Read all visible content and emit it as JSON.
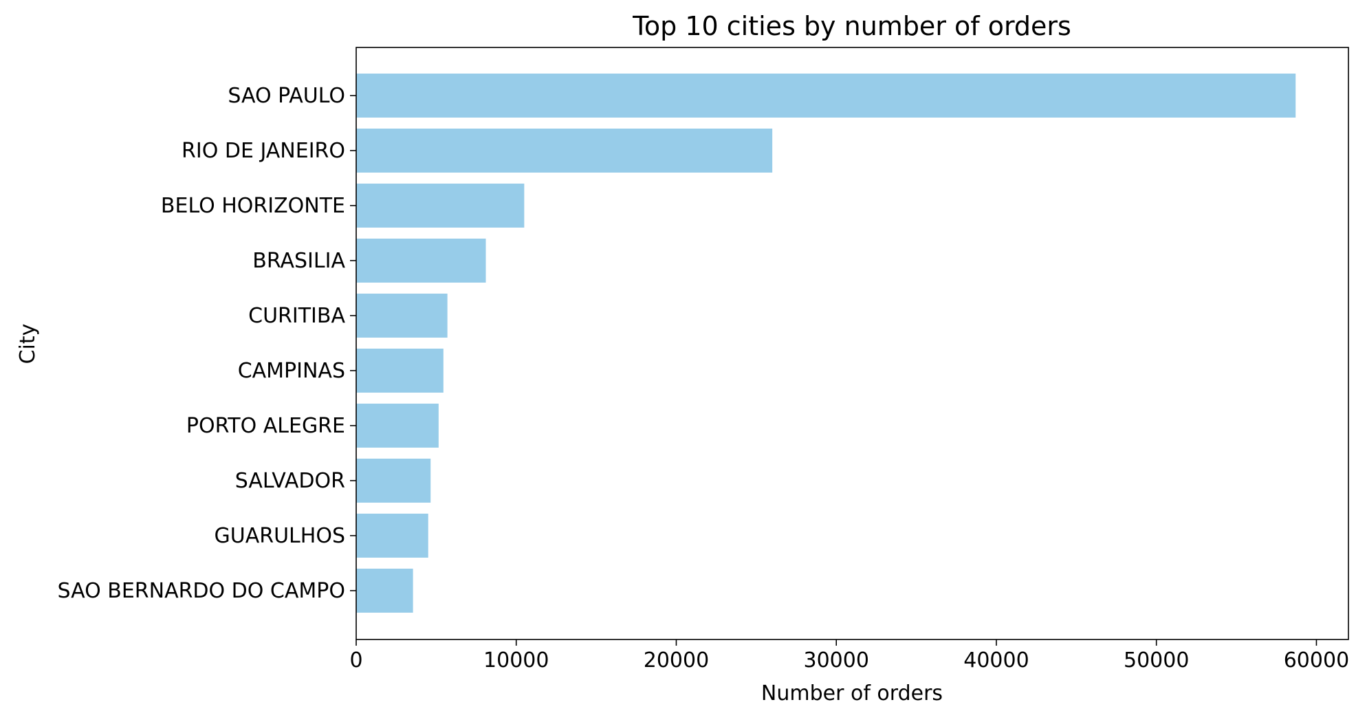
{
  "chart_data": {
    "type": "bar",
    "orientation": "horizontal",
    "title": "Top 10 cities by number of orders",
    "xlabel": "Number of orders",
    "ylabel": "City",
    "categories": [
      "SAO PAULO",
      "RIO DE JANEIRO",
      "BELO HORIZONTE",
      "BRASILIA",
      "CURITIBA",
      "CAMPINAS",
      "PORTO ALEGRE",
      "SALVADOR",
      "GUARULHOS",
      "SAO BERNARDO DO CAMPO"
    ],
    "values": [
      58700,
      26000,
      10500,
      8100,
      5700,
      5450,
      5150,
      4650,
      4500,
      3550
    ],
    "xlim": [
      0,
      62000
    ],
    "xticks": [
      0,
      10000,
      20000,
      30000,
      40000,
      50000,
      60000
    ],
    "bar_color": "#97cce9",
    "grid": false,
    "legend": "none"
  }
}
